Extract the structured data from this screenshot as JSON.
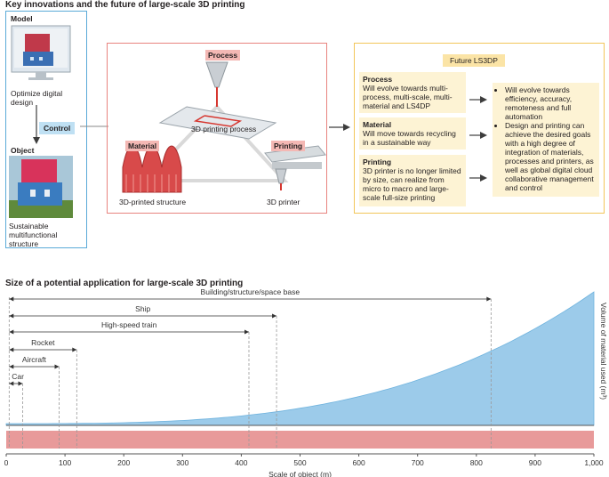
{
  "top_title": "Key innovations and the future of large-scale 3D printing",
  "left_panel": {
    "model_label": "Model",
    "model_caption": "Optimize digital design",
    "control_label": "Control",
    "object_label": "Object",
    "object_caption": "Sustainable multifunctional structure"
  },
  "mid_panel": {
    "process_tag": "Process",
    "process_caption": "3D printing process",
    "material_tag": "Material",
    "material_caption": "3D-printed structure",
    "printing_tag": "Printing",
    "printing_caption": "3D printer"
  },
  "right_panel": {
    "title": "Future LS3DP",
    "rows": [
      {
        "head": "Process",
        "text": "Will evolve towards multi-process, multi-scale, multi-material and LS4DP"
      },
      {
        "head": "Material",
        "text": "Will move towards recycling in a sustainable way"
      },
      {
        "head": "Printing",
        "text": "3D printer is no longer limited by size, can realize from micro to macro and large-scale full-size printing"
      }
    ],
    "bullets": [
      "Will evolve towards efficiency, accuracy, remoteness and full automation",
      "Design and printing can achieve the desired goals with a high degree of integration of materials, processes and printers, as well as global digital cloud collaborative management and control"
    ]
  },
  "bottom_title": "Size of a potential application for large-scale 3D printing",
  "chart_data": {
    "type": "area",
    "title": "Size of a potential application for large-scale 3D printing",
    "xlabel": "Scale of object (m)",
    "ylabel": "Volume of material used (m³)",
    "xlim": [
      0,
      1000
    ],
    "x_ticks": [
      "0",
      "100",
      "200",
      "300",
      "400",
      "500",
      "600",
      "700",
      "800",
      "900",
      "1,000"
    ],
    "x_tick_values": [
      0,
      100,
      200,
      300,
      400,
      500,
      600,
      700,
      800,
      900,
      1000
    ],
    "ranges": [
      {
        "label": "Building/structure/space base",
        "start": 5,
        "end": 825
      },
      {
        "label": "Ship",
        "start": 5,
        "end": 460
      },
      {
        "label": "High-speed train",
        "start": 5,
        "end": 413
      },
      {
        "label": "Rocket",
        "start": 5,
        "end": 120
      },
      {
        "label": "Aircraft",
        "start": 5,
        "end": 90
      },
      {
        "label": "Car",
        "start": 5,
        "end": 28
      }
    ],
    "area_color": "#9ccbea",
    "band_color": "#e89a9a"
  }
}
